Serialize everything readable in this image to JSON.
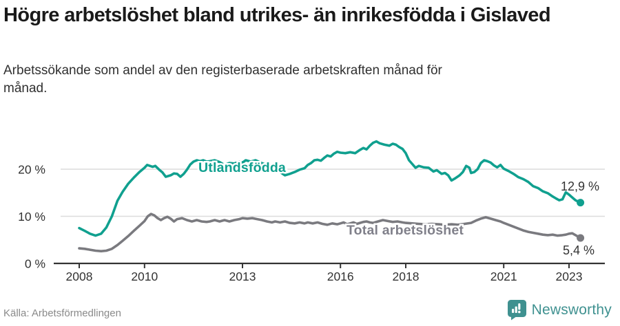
{
  "header": {
    "title": "Högre arbetslöshet bland utrikes- än inrikesfödda i Gislaved",
    "subtitle": "Arbetssökande som andel av den registerbaserade arbetskraften månad för månad."
  },
  "footer": {
    "source": "Källa: Arbetsförmedlingen",
    "brand": "Newsworthy",
    "brand_icon": "bar-chart-speech-bubble-icon"
  },
  "colors": {
    "utland_line": "#10a08f",
    "total_line": "#7a7a7f",
    "total_label_text": "#80808a",
    "axis": "#333333",
    "grid": "#dcdcdc",
    "value_label_text": "#333333",
    "brand_teal": "#3f9190"
  },
  "chart_data": {
    "type": "line",
    "title": "Högre arbetslöshet bland utrikes- än inrikesfödda i Gislaved",
    "subtitle": "Arbetssökande som andel av den registerbaserade arbetskraften månad för månad.",
    "unit": "%",
    "xlim": [
      2007.9,
      2023.6
    ],
    "ylim": [
      0,
      28
    ],
    "grid": "horizontal-only",
    "x_ticks": [
      2008,
      2010,
      2013,
      2016,
      2018,
      2021,
      2023
    ],
    "x_tick_labels": [
      "2008",
      "2010",
      "2013",
      "2016",
      "2018",
      "2021",
      "2023"
    ],
    "y_ticks": [
      0,
      10,
      20
    ],
    "y_tick_labels": [
      "0 %",
      "10 %",
      "20 %"
    ],
    "series": [
      {
        "name": "Utlandsfödda",
        "color": "#10a08f",
        "end_label": "12,9 %",
        "end_value": 12.9,
        "points": [
          [
            2008.0,
            7.5
          ],
          [
            2008.17,
            6.9
          ],
          [
            2008.33,
            6.3
          ],
          [
            2008.5,
            5.9
          ],
          [
            2008.67,
            6.3
          ],
          [
            2008.83,
            7.6
          ],
          [
            2009.0,
            10.0
          ],
          [
            2009.17,
            13.3
          ],
          [
            2009.33,
            15.2
          ],
          [
            2009.5,
            16.9
          ],
          [
            2009.67,
            18.2
          ],
          [
            2009.83,
            19.3
          ],
          [
            2010.0,
            20.3
          ],
          [
            2010.08,
            20.9
          ],
          [
            2010.25,
            20.5
          ],
          [
            2010.33,
            20.7
          ],
          [
            2010.45,
            19.9
          ],
          [
            2010.55,
            19.3
          ],
          [
            2010.65,
            18.4
          ],
          [
            2010.8,
            18.7
          ],
          [
            2010.9,
            19.1
          ],
          [
            2011.0,
            19.0
          ],
          [
            2011.1,
            18.4
          ],
          [
            2011.2,
            19.0
          ],
          [
            2011.3,
            19.9
          ],
          [
            2011.4,
            21.0
          ],
          [
            2011.5,
            21.6
          ],
          [
            2011.6,
            21.9
          ],
          [
            2011.7,
            21.7
          ],
          [
            2011.8,
            21.9
          ],
          [
            2011.9,
            21.6
          ],
          [
            2012.0,
            21.7
          ],
          [
            2012.15,
            21.9
          ],
          [
            2012.3,
            21.5
          ],
          [
            2012.45,
            20.9
          ],
          [
            2012.6,
            21.3
          ],
          [
            2012.75,
            21.2
          ],
          [
            2012.9,
            21.6
          ],
          [
            2013.0,
            21.4
          ],
          [
            2013.1,
            21.9
          ],
          [
            2013.25,
            21.6
          ],
          [
            2013.4,
            21.9
          ],
          [
            2013.55,
            21.4
          ],
          [
            2013.7,
            21.0
          ],
          [
            2013.85,
            20.6
          ],
          [
            2014.0,
            20.0
          ],
          [
            2014.15,
            19.4
          ],
          [
            2014.3,
            18.7
          ],
          [
            2014.45,
            19.0
          ],
          [
            2014.6,
            19.4
          ],
          [
            2014.75,
            19.9
          ],
          [
            2014.9,
            20.2
          ],
          [
            2015.0,
            20.9
          ],
          [
            2015.1,
            21.3
          ],
          [
            2015.2,
            21.9
          ],
          [
            2015.3,
            22.0
          ],
          [
            2015.4,
            21.8
          ],
          [
            2015.5,
            22.4
          ],
          [
            2015.6,
            22.9
          ],
          [
            2015.7,
            22.7
          ],
          [
            2015.8,
            23.3
          ],
          [
            2015.9,
            23.7
          ],
          [
            2016.0,
            23.5
          ],
          [
            2016.15,
            23.4
          ],
          [
            2016.3,
            23.6
          ],
          [
            2016.45,
            23.4
          ],
          [
            2016.6,
            24.1
          ],
          [
            2016.7,
            24.5
          ],
          [
            2016.8,
            24.2
          ],
          [
            2016.9,
            25.0
          ],
          [
            2017.0,
            25.6
          ],
          [
            2017.1,
            25.9
          ],
          [
            2017.2,
            25.5
          ],
          [
            2017.35,
            25.2
          ],
          [
            2017.5,
            25.0
          ],
          [
            2017.6,
            25.4
          ],
          [
            2017.7,
            25.2
          ],
          [
            2017.8,
            24.7
          ],
          [
            2017.9,
            24.3
          ],
          [
            2018.0,
            23.4
          ],
          [
            2018.1,
            21.9
          ],
          [
            2018.2,
            21.1
          ],
          [
            2018.3,
            20.3
          ],
          [
            2018.4,
            20.7
          ],
          [
            2018.55,
            20.4
          ],
          [
            2018.7,
            20.3
          ],
          [
            2018.85,
            19.5
          ],
          [
            2018.95,
            19.8
          ],
          [
            2019.1,
            19.0
          ],
          [
            2019.2,
            19.2
          ],
          [
            2019.3,
            18.7
          ],
          [
            2019.4,
            17.6
          ],
          [
            2019.5,
            18.0
          ],
          [
            2019.65,
            18.7
          ],
          [
            2019.75,
            19.4
          ],
          [
            2019.85,
            20.7
          ],
          [
            2019.95,
            20.3
          ],
          [
            2020.0,
            19.2
          ],
          [
            2020.1,
            19.4
          ],
          [
            2020.2,
            20.0
          ],
          [
            2020.3,
            21.3
          ],
          [
            2020.4,
            21.9
          ],
          [
            2020.5,
            21.7
          ],
          [
            2020.6,
            21.4
          ],
          [
            2020.7,
            20.8
          ],
          [
            2020.8,
            20.4
          ],
          [
            2020.9,
            20.9
          ],
          [
            2021.0,
            20.1
          ],
          [
            2021.15,
            19.6
          ],
          [
            2021.3,
            19.0
          ],
          [
            2021.45,
            18.3
          ],
          [
            2021.6,
            17.9
          ],
          [
            2021.75,
            17.3
          ],
          [
            2021.9,
            16.4
          ],
          [
            2022.05,
            16.0
          ],
          [
            2022.2,
            15.3
          ],
          [
            2022.35,
            14.9
          ],
          [
            2022.5,
            14.2
          ],
          [
            2022.6,
            13.8
          ],
          [
            2022.7,
            13.4
          ],
          [
            2022.8,
            13.6
          ],
          [
            2022.9,
            15.1
          ],
          [
            2023.0,
            14.6
          ],
          [
            2023.1,
            14.0
          ],
          [
            2023.2,
            13.4
          ],
          [
            2023.35,
            12.9
          ]
        ]
      },
      {
        "name": "Total arbetslöshet",
        "color": "#7a7a7f",
        "end_label": "5,4 %",
        "end_value": 5.4,
        "points": [
          [
            2008.0,
            3.2
          ],
          [
            2008.17,
            3.1
          ],
          [
            2008.33,
            2.9
          ],
          [
            2008.5,
            2.7
          ],
          [
            2008.67,
            2.6
          ],
          [
            2008.83,
            2.7
          ],
          [
            2009.0,
            3.1
          ],
          [
            2009.17,
            3.9
          ],
          [
            2009.33,
            4.8
          ],
          [
            2009.5,
            5.8
          ],
          [
            2009.67,
            6.9
          ],
          [
            2009.83,
            7.9
          ],
          [
            2010.0,
            9.0
          ],
          [
            2010.1,
            10.0
          ],
          [
            2010.2,
            10.5
          ],
          [
            2010.3,
            10.2
          ],
          [
            2010.4,
            9.6
          ],
          [
            2010.5,
            9.2
          ],
          [
            2010.6,
            9.6
          ],
          [
            2010.7,
            9.9
          ],
          [
            2010.8,
            9.5
          ],
          [
            2010.9,
            8.9
          ],
          [
            2011.0,
            9.4
          ],
          [
            2011.15,
            9.6
          ],
          [
            2011.3,
            9.2
          ],
          [
            2011.45,
            8.9
          ],
          [
            2011.6,
            9.2
          ],
          [
            2011.75,
            8.9
          ],
          [
            2011.9,
            8.8
          ],
          [
            2012.0,
            8.9
          ],
          [
            2012.15,
            9.2
          ],
          [
            2012.3,
            8.9
          ],
          [
            2012.45,
            9.2
          ],
          [
            2012.6,
            8.9
          ],
          [
            2012.75,
            9.2
          ],
          [
            2012.9,
            9.4
          ],
          [
            2013.0,
            9.6
          ],
          [
            2013.15,
            9.5
          ],
          [
            2013.3,
            9.6
          ],
          [
            2013.45,
            9.4
          ],
          [
            2013.6,
            9.2
          ],
          [
            2013.75,
            8.9
          ],
          [
            2013.9,
            8.7
          ],
          [
            2014.0,
            8.9
          ],
          [
            2014.15,
            8.7
          ],
          [
            2014.3,
            8.9
          ],
          [
            2014.45,
            8.6
          ],
          [
            2014.6,
            8.5
          ],
          [
            2014.75,
            8.7
          ],
          [
            2014.9,
            8.5
          ],
          [
            2015.0,
            8.7
          ],
          [
            2015.15,
            8.5
          ],
          [
            2015.3,
            8.7
          ],
          [
            2015.45,
            8.4
          ],
          [
            2015.6,
            8.2
          ],
          [
            2015.75,
            8.5
          ],
          [
            2015.9,
            8.3
          ],
          [
            2016.0,
            8.5
          ],
          [
            2016.1,
            8.7
          ],
          [
            2016.2,
            8.3
          ],
          [
            2016.3,
            8.5
          ],
          [
            2016.4,
            8.7
          ],
          [
            2016.5,
            8.4
          ],
          [
            2016.6,
            8.6
          ],
          [
            2016.7,
            8.8
          ],
          [
            2016.8,
            8.9
          ],
          [
            2016.9,
            8.7
          ],
          [
            2017.0,
            8.6
          ],
          [
            2017.15,
            8.9
          ],
          [
            2017.3,
            9.2
          ],
          [
            2017.45,
            9.0
          ],
          [
            2017.6,
            8.8
          ],
          [
            2017.75,
            8.9
          ],
          [
            2017.9,
            8.7
          ],
          [
            2018.0,
            8.6
          ],
          [
            2018.2,
            8.5
          ],
          [
            2018.4,
            8.4
          ],
          [
            2018.6,
            8.3
          ],
          [
            2018.8,
            8.4
          ],
          [
            2019.0,
            8.3
          ],
          [
            2019.2,
            8.2
          ],
          [
            2019.4,
            8.3
          ],
          [
            2019.6,
            8.2
          ],
          [
            2019.8,
            8.4
          ],
          [
            2020.0,
            8.6
          ],
          [
            2020.15,
            9.1
          ],
          [
            2020.3,
            9.5
          ],
          [
            2020.45,
            9.8
          ],
          [
            2020.6,
            9.5
          ],
          [
            2020.75,
            9.2
          ],
          [
            2020.9,
            8.9
          ],
          [
            2021.0,
            8.6
          ],
          [
            2021.15,
            8.2
          ],
          [
            2021.3,
            7.8
          ],
          [
            2021.45,
            7.4
          ],
          [
            2021.6,
            7.0
          ],
          [
            2021.75,
            6.7
          ],
          [
            2021.9,
            6.5
          ],
          [
            2022.05,
            6.3
          ],
          [
            2022.2,
            6.1
          ],
          [
            2022.35,
            6.0
          ],
          [
            2022.5,
            6.1
          ],
          [
            2022.65,
            5.9
          ],
          [
            2022.8,
            6.0
          ],
          [
            2022.9,
            6.1
          ],
          [
            2023.0,
            6.3
          ],
          [
            2023.1,
            6.4
          ],
          [
            2023.2,
            6.0
          ],
          [
            2023.35,
            5.4
          ]
        ]
      }
    ],
    "legend_position": "inline-labels-on-lines"
  }
}
